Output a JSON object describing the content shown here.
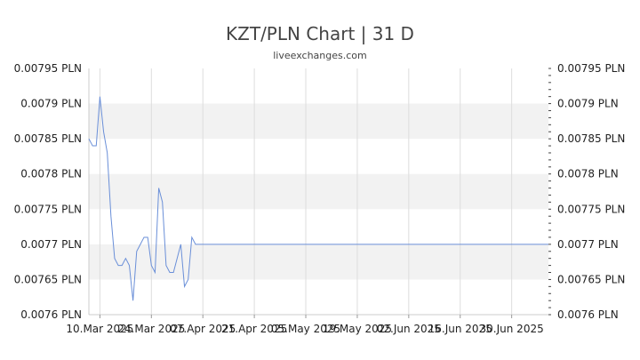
{
  "chart_data": {
    "type": "line",
    "title": "KZT/PLN Chart | 31 D",
    "subtitle": "liveexchanges.com",
    "xlabel": "",
    "ylabel": "",
    "ylim": [
      0.0076,
      0.00795
    ],
    "y_ticks": [
      "0.00795 PLN",
      "0.0079 PLN",
      "0.00785 PLN",
      "0.0078 PLN",
      "0.00775 PLN",
      "0.0077 PLN",
      "0.00765 PLN",
      "0.0076 PLN"
    ],
    "y_tick_values": [
      0.00795,
      0.0079,
      0.00785,
      0.0078,
      0.00775,
      0.0077,
      0.00765,
      0.0076
    ],
    "x_ticks": [
      "10.Mar 2025",
      "24.Mar 2025",
      "07.Apr 2025",
      "21.Apr 2025",
      "05.May 2025",
      "19.May 2025",
      "02.Jun 2025",
      "16.Jun 2025",
      "30.Jun 2025"
    ],
    "x_tick_dates": [
      "2025-03-10",
      "2025-03-24",
      "2025-04-07",
      "2025-04-21",
      "2025-05-05",
      "2025-05-19",
      "2025-06-02",
      "2025-06-16",
      "2025-06-30"
    ],
    "x_range": [
      "2025-03-07",
      "2025-07-10"
    ],
    "grid": true,
    "line_color": "#6a8fd8",
    "band_color": "#f2f2f2",
    "series": [
      {
        "x": [
          "2025-03-07",
          "2025-03-08",
          "2025-03-09",
          "2025-03-10",
          "2025-03-11",
          "2025-03-12",
          "2025-03-13",
          "2025-03-14",
          "2025-03-15",
          "2025-03-16",
          "2025-03-17",
          "2025-03-18",
          "2025-03-19",
          "2025-03-20",
          "2025-03-21",
          "2025-03-22",
          "2025-03-23",
          "2025-03-24",
          "2025-03-25",
          "2025-03-26",
          "2025-03-27",
          "2025-03-28",
          "2025-03-29",
          "2025-03-30",
          "2025-03-31",
          "2025-04-01",
          "2025-04-02",
          "2025-04-03",
          "2025-04-04",
          "2025-04-05",
          "2025-04-06",
          "2025-04-07",
          "2025-04-08",
          "2025-07-10"
        ],
        "values": [
          0.00785,
          0.00784,
          0.00784,
          0.00791,
          0.00786,
          0.00783,
          0.00774,
          0.00768,
          0.00767,
          0.00767,
          0.00768,
          0.00767,
          0.00762,
          0.00769,
          0.0077,
          0.00771,
          0.00771,
          0.00767,
          0.00766,
          0.00778,
          0.00776,
          0.00767,
          0.00766,
          0.00766,
          0.00768,
          0.0077,
          0.00764,
          0.00765,
          0.00771,
          0.0077,
          0.0077,
          0.0077,
          0.0077,
          0.0077
        ]
      }
    ]
  }
}
